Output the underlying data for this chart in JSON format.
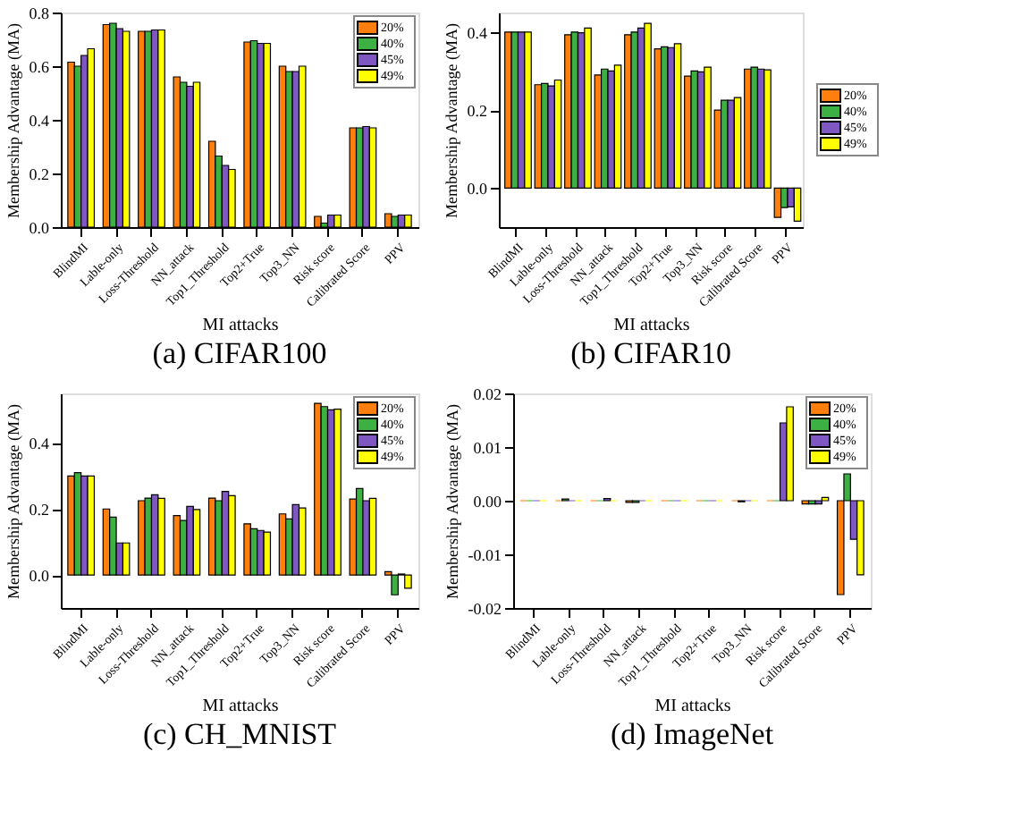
{
  "chart_data": [
    {
      "type": "bar",
      "title": "(a) CIFAR100",
      "xlabel": "MI attacks",
      "ylabel": "Membership Advantage (MA)",
      "legend": "top right",
      "grid": false,
      "categories": [
        "BlindMI",
        "Lable-only",
        "Loss-Threshold",
        "NN_attack",
        "Top1_Threshold",
        "Top2+True",
        "Top3_NN",
        "Risk score",
        "Calibrated Score",
        "PPV"
      ],
      "ylim": [
        0,
        0.8
      ],
      "yticks": [
        {
          "value": 0,
          "label": "0.0"
        },
        {
          "value": 0.2,
          "label": "0.2"
        },
        {
          "value": 0.4,
          "label": "0.4"
        },
        {
          "value": 0.6,
          "label": "0.6"
        },
        {
          "value": 0.8,
          "label": "0.8"
        }
      ],
      "series": [
        {
          "name": "20%",
          "color": "#ff7f0e",
          "values": [
            0.615,
            0.755,
            0.73,
            0.56,
            0.32,
            0.69,
            0.6,
            0.04,
            0.37,
            0.05
          ]
        },
        {
          "name": "40%",
          "color": "#3cb043",
          "values": [
            0.6,
            0.76,
            0.73,
            0.54,
            0.265,
            0.695,
            0.58,
            0.015,
            0.37,
            0.04
          ]
        },
        {
          "name": "45%",
          "color": "#7e57c2",
          "values": [
            0.64,
            0.74,
            0.735,
            0.525,
            0.23,
            0.685,
            0.58,
            0.045,
            0.375,
            0.045
          ]
        },
        {
          "name": "49%",
          "color": "#ffff00",
          "values": [
            0.665,
            0.73,
            0.735,
            0.54,
            0.215,
            0.685,
            0.6,
            0.045,
            0.37,
            0.045
          ]
        }
      ]
    },
    {
      "type": "bar",
      "title": "(b) CIFAR10",
      "xlabel": "MI attacks",
      "ylabel": "Membership Advantage (MA)",
      "legend": "right",
      "grid": false,
      "categories": [
        "BlindMI",
        "Lable-only",
        "Loss-Threshold",
        "NN_attack",
        "Top1_Threshold",
        "Top2+True",
        "Top3_NN",
        "Risk score",
        "Calibrated Score",
        "PPV"
      ],
      "ylim": [
        -0.1,
        0.45
      ],
      "yticks": [
        {
          "value": 0,
          "label": "0.0"
        },
        {
          "value": 0.2,
          "label": "0.2"
        },
        {
          "value": 0.4,
          "label": "0.4"
        }
      ],
      "series": [
        {
          "name": "20%",
          "color": "#ff7f0e",
          "values": [
            0.4,
            0.265,
            0.393,
            0.29,
            0.393,
            0.357,
            0.287,
            0.2,
            0.305,
            -0.075
          ]
        },
        {
          "name": "40%",
          "color": "#3cb043",
          "values": [
            0.4,
            0.268,
            0.4,
            0.305,
            0.4,
            0.362,
            0.3,
            0.225,
            0.31,
            -0.05
          ]
        },
        {
          "name": "45%",
          "color": "#7e57c2",
          "values": [
            0.4,
            0.262,
            0.398,
            0.3,
            0.41,
            0.36,
            0.298,
            0.225,
            0.305,
            -0.048
          ]
        },
        {
          "name": "49%",
          "color": "#ffff00",
          "values": [
            0.4,
            0.277,
            0.41,
            0.315,
            0.422,
            0.37,
            0.31,
            0.232,
            0.303,
            -0.085
          ]
        }
      ]
    },
    {
      "type": "bar",
      "title": "(c) CH_MNIST",
      "xlabel": "MI attacks",
      "ylabel": "Membership Advantage (MA)",
      "legend": "top right",
      "grid": false,
      "categories": [
        "BlindMI",
        "Lable-only",
        "Loss-Threshold",
        "NN_attack",
        "Top1_Threshold",
        "Top2+True",
        "Top3_NN",
        "Risk score",
        "Calibrated Score",
        "PPV"
      ],
      "ylim": [
        -0.1,
        0.55
      ],
      "yticks": [
        {
          "value": 0,
          "label": "0.0"
        },
        {
          "value": 0.2,
          "label": "0.2"
        },
        {
          "value": 0.4,
          "label": "0.4"
        }
      ],
      "series": [
        {
          "name": "20%",
          "color": "#ff7f0e",
          "values": [
            0.3,
            0.2,
            0.225,
            0.18,
            0.233,
            0.155,
            0.185,
            0.52,
            0.23,
            0.01
          ]
        },
        {
          "name": "40%",
          "color": "#3cb043",
          "values": [
            0.31,
            0.175,
            0.233,
            0.165,
            0.225,
            0.14,
            0.17,
            0.51,
            0.262,
            -0.06
          ]
        },
        {
          "name": "45%",
          "color": "#7e57c2",
          "values": [
            0.3,
            0.097,
            0.243,
            0.208,
            0.253,
            0.135,
            0.213,
            0.5,
            0.225,
            0.003
          ]
        },
        {
          "name": "49%",
          "color": "#ffff00",
          "values": [
            0.3,
            0.097,
            0.232,
            0.198,
            0.24,
            0.13,
            0.203,
            0.502,
            0.232,
            -0.04
          ]
        }
      ]
    },
    {
      "type": "bar",
      "title": "(d) ImageNet",
      "xlabel": "MI attacks",
      "ylabel": "Membership Advantage (MA)",
      "legend": "top right",
      "grid": false,
      "categories": [
        "BlindMI",
        "Lable-only",
        "Loss-Threshold",
        "NN_attack",
        "Top1_Threshold",
        "Top2+True",
        "Top3_NN",
        "Risk score",
        "Calibrated Score",
        "PPV"
      ],
      "ylim": [
        -0.02,
        0.02
      ],
      "yticks": [
        {
          "value": -0.02,
          "label": "-0.02"
        },
        {
          "value": -0.01,
          "label": "-0.01"
        },
        {
          "value": 0,
          "label": "0.00"
        },
        {
          "value": 0.01,
          "label": "0.01"
        },
        {
          "value": 0.02,
          "label": "0.02"
        }
      ],
      "series": [
        {
          "name": "20%",
          "color": "#ff7f0e",
          "values": [
            0,
            0,
            0,
            -0.0003,
            0,
            0,
            0,
            0,
            -0.0006,
            -0.0175
          ]
        },
        {
          "name": "40%",
          "color": "#3cb043",
          "values": [
            0,
            0.0003,
            0,
            -0.0003,
            0,
            0,
            -0.0002,
            0,
            -0.0006,
            0.005
          ]
        },
        {
          "name": "45%",
          "color": "#7e57c2",
          "values": [
            0,
            0,
            0.0004,
            0,
            0,
            0,
            0,
            0.0145,
            -0.0006,
            -0.0072
          ]
        },
        {
          "name": "49%",
          "color": "#ffff00",
          "values": [
            0,
            0,
            0,
            0,
            0,
            0,
            0,
            0.0175,
            0.0006,
            -0.0138
          ]
        }
      ]
    }
  ]
}
